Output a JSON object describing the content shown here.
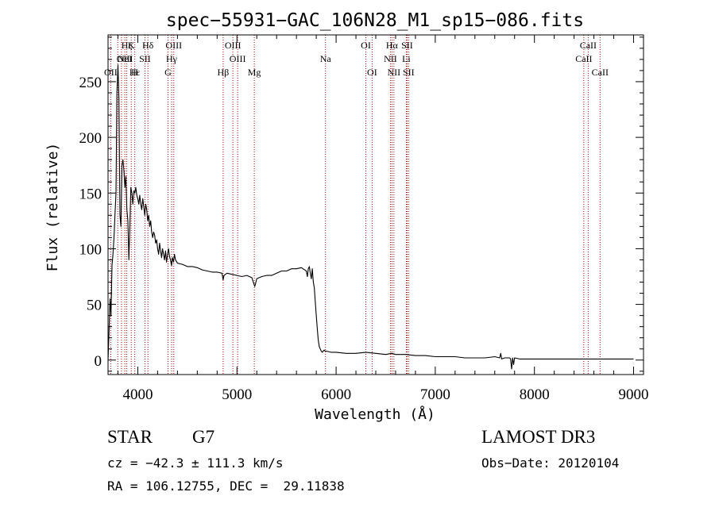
{
  "chart_data": {
    "type": "line",
    "title": "spec−55931−GAC_106N28_M1_sp15−086.fits",
    "xlabel": "Wavelength (Å)",
    "ylabel": "Flux (relative)",
    "xlim": [
      3700,
      9100
    ],
    "ylim": [
      -13,
      292
    ],
    "xticks": [
      4000,
      5000,
      6000,
      7000,
      8000,
      9000
    ],
    "yticks": [
      0,
      50,
      100,
      150,
      200,
      250
    ],
    "series": [
      {
        "name": "flux",
        "x": [
          3700,
          3710,
          3720,
          3730,
          3740,
          3750,
          3760,
          3770,
          3780,
          3790,
          3800,
          3810,
          3820,
          3830,
          3840,
          3850,
          3860,
          3870,
          3880,
          3890,
          3900,
          3910,
          3920,
          3930,
          3940,
          3950,
          3960,
          3970,
          3980,
          3990,
          4000,
          4010,
          4020,
          4030,
          4040,
          4050,
          4060,
          4070,
          4080,
          4090,
          4100,
          4110,
          4120,
          4130,
          4140,
          4150,
          4160,
          4170,
          4180,
          4190,
          4200,
          4210,
          4220,
          4230,
          4240,
          4250,
          4260,
          4270,
          4280,
          4290,
          4300,
          4310,
          4320,
          4330,
          4340,
          4350,
          4360,
          4370,
          4380,
          4400,
          4450,
          4500,
          4550,
          4600,
          4650,
          4700,
          4750,
          4800,
          4850,
          4860,
          4870,
          4900,
          4950,
          5000,
          5050,
          5100,
          5150,
          5180,
          5200,
          5250,
          5300,
          5350,
          5400,
          5450,
          5500,
          5550,
          5600,
          5650,
          5700,
          5710,
          5720,
          5730,
          5740,
          5750,
          5760,
          5770,
          5780,
          5790,
          5800,
          5810,
          5820,
          5830,
          5840,
          5850,
          5860,
          5870,
          5880,
          5890,
          5900,
          5950,
          6000,
          6100,
          6200,
          6300,
          6400,
          6500,
          6562,
          6600,
          6700,
          6800,
          6900,
          7000,
          7100,
          7200,
          7300,
          7400,
          7500,
          7600,
          7650,
          7660,
          7670,
          7700,
          7750,
          7760,
          7770,
          7780,
          7790,
          7800,
          7850,
          7900,
          8000,
          8100,
          8200,
          8300,
          8400,
          8500,
          8600,
          8700,
          8800,
          8900,
          9000
        ],
        "values": [
          0,
          25,
          55,
          40,
          85,
          95,
          110,
          130,
          150,
          240,
          265,
          235,
          130,
          120,
          175,
          180,
          170,
          155,
          165,
          135,
          125,
          90,
          120,
          155,
          150,
          140,
          152,
          150,
          155,
          148,
          145,
          140,
          148,
          140,
          135,
          145,
          138,
          130,
          140,
          135,
          125,
          130,
          120,
          125,
          115,
          110,
          115,
          112,
          105,
          108,
          100,
          95,
          105,
          98,
          92,
          100,
          95,
          90,
          98,
          88,
          95,
          100,
          93,
          90,
          85,
          92,
          88,
          95,
          90,
          87,
          86,
          84,
          84,
          83,
          81,
          80,
          79,
          79,
          78,
          72,
          76,
          78,
          77,
          76,
          75,
          76,
          74,
          66,
          73,
          75,
          76,
          76,
          78,
          80,
          80,
          82,
          82,
          83,
          80,
          75,
          82,
          84,
          78,
          73,
          82,
          70,
          65,
          52,
          40,
          28,
          18,
          12,
          10,
          8,
          7,
          8,
          9,
          8,
          8,
          7,
          7,
          6,
          6,
          7,
          6,
          5,
          6,
          5,
          5,
          4,
          4,
          3,
          3,
          3,
          2,
          2,
          2,
          3,
          2,
          6,
          1,
          2,
          2,
          1,
          -8,
          2,
          -4,
          2,
          1,
          1,
          1,
          1,
          1,
          1,
          1,
          1,
          1,
          1,
          1,
          1,
          1
        ]
      }
    ],
    "spectral_lines": [
      {
        "name": "Hζ",
        "wavelength": 3889,
        "row": 1
      },
      {
        "name": "OII",
        "wavelength": 3727,
        "row": 3
      },
      {
        "name": "K",
        "wavelength": 3934,
        "row": 1
      },
      {
        "name": "OIII",
        "wavelength": 3869,
        "row": 2
      },
      {
        "name": "Hε",
        "wavelength": 3970,
        "row": 3
      },
      {
        "name": "H",
        "wavelength": 3969,
        "row": 3
      },
      {
        "name": "NeI",
        "wavelength": 3869,
        "row": 2
      },
      {
        "name": "SII",
        "wavelength": 4072,
        "row": 2
      },
      {
        "name": "Hδ",
        "wavelength": 4102,
        "row": 1
      },
      {
        "name": "OIII",
        "wavelength": 4363,
        "row": 1
      },
      {
        "name": "Hγ",
        "wavelength": 4341,
        "row": 2
      },
      {
        "name": "G",
        "wavelength": 4305,
        "row": 3
      },
      {
        "name": "OIII",
        "wavelength": 4959,
        "row": 1
      },
      {
        "name": "OIII",
        "wavelength": 5007,
        "row": 2
      },
      {
        "name": "Hβ",
        "wavelength": 4861,
        "row": 3
      },
      {
        "name": "Mg",
        "wavelength": 5175,
        "row": 3
      },
      {
        "name": "Na",
        "wavelength": 5893,
        "row": 2
      },
      {
        "name": "OI",
        "wavelength": 6300,
        "row": 1
      },
      {
        "name": "OI",
        "wavelength": 6363,
        "row": 3
      },
      {
        "name": "Hα",
        "wavelength": 6563,
        "row": 1
      },
      {
        "name": "NII",
        "wavelength": 6548,
        "row": 2
      },
      {
        "name": "NII",
        "wavelength": 6583,
        "row": 3
      },
      {
        "name": "SII",
        "wavelength": 6716,
        "row": 1
      },
      {
        "name": "Li",
        "wavelength": 6708,
        "row": 2
      },
      {
        "name": "SII",
        "wavelength": 6731,
        "row": 3
      },
      {
        "name": "CaII",
        "wavelength": 8542,
        "row": 1
      },
      {
        "name": "CaII",
        "wavelength": 8498,
        "row": 2
      },
      {
        "name": "CaII",
        "wavelength": 8662,
        "row": 3
      }
    ],
    "line_positions": [
      3727,
      3798,
      3835,
      3869,
      3889,
      3934,
      3970,
      4072,
      4102,
      4305,
      4341,
      4363,
      4861,
      4959,
      5007,
      5175,
      5893,
      6300,
      6363,
      6548,
      6563,
      6583,
      6708,
      6716,
      6731,
      8498,
      8542,
      8662
    ],
    "line_color": "#b00000"
  },
  "info": {
    "class": "STAR",
    "subclass": "G7",
    "survey": "LAMOST DR3",
    "cz": "cz = −42.3 ± 111.3 km/s",
    "obs_date": "Obs−Date: 20120104",
    "coords": "RA = 106.12755, DEC =  29.11838"
  }
}
